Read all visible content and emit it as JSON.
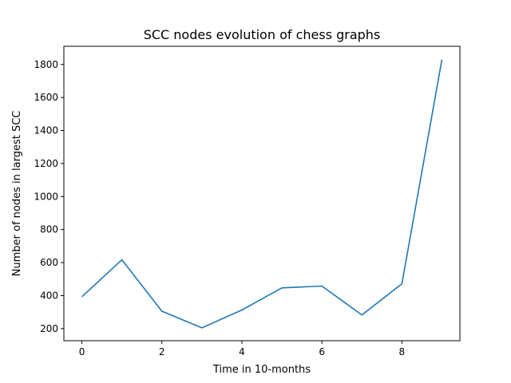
{
  "chart_data": {
    "type": "line",
    "title": "SCC nodes evolution of chess graphs",
    "xlabel": "Time in 10-months",
    "ylabel": "Number of nodes in largest SCC",
    "x": [
      0,
      1,
      2,
      3,
      4,
      5,
      6,
      7,
      8,
      9
    ],
    "series": [
      {
        "values": [
          393,
          617,
          306,
          205,
          313,
          447,
          458,
          283,
          472,
          1829
        ],
        "color": "#1f77b4"
      }
    ],
    "xlim": [
      -0.45,
      9.45
    ],
    "ylim": [
      127,
      1910
    ],
    "xticks": [
      0,
      2,
      4,
      6,
      8
    ],
    "yticks": [
      200,
      400,
      600,
      800,
      1000,
      1200,
      1400,
      1600,
      1800
    ],
    "grid": false,
    "legend": "none"
  }
}
